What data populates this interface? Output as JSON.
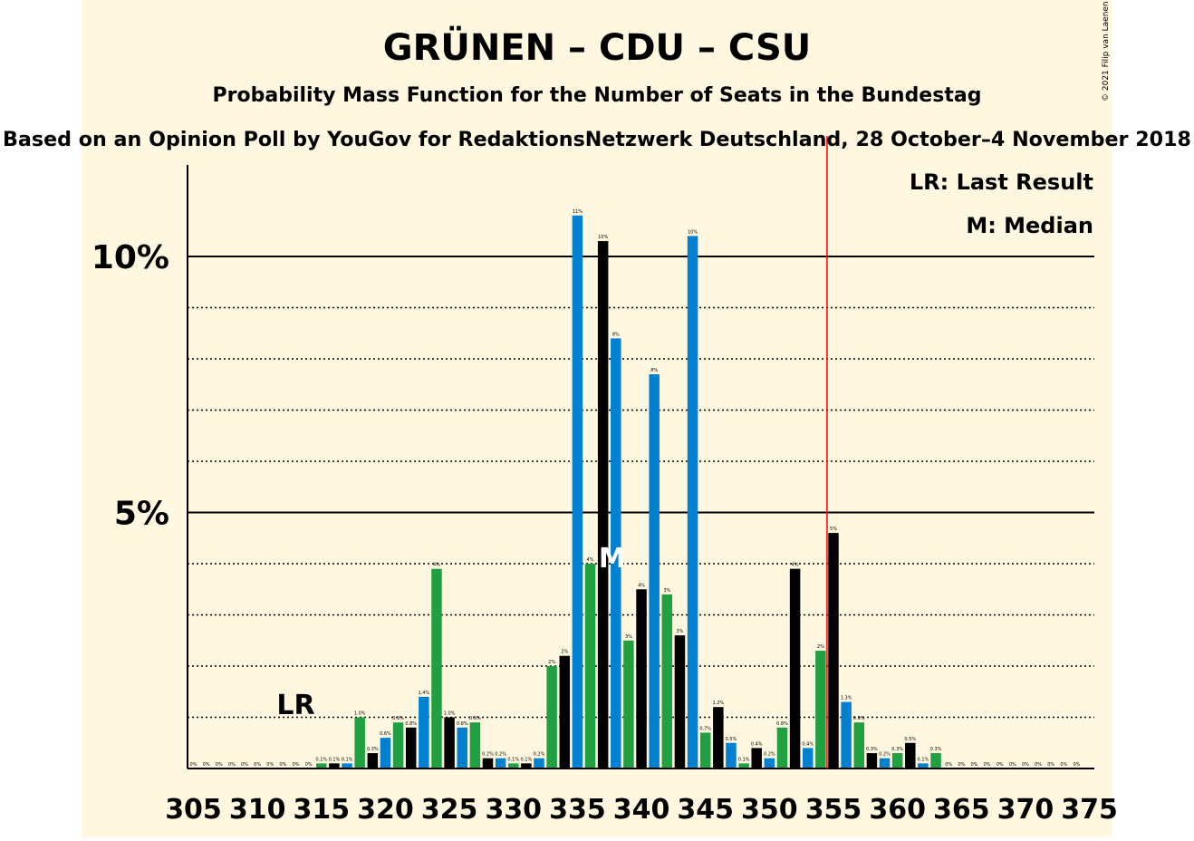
{
  "title": "GRÜNEN – CDU – CSU",
  "subtitle": "Probability Mass Function for the Number of Seats in the Bundestag",
  "source": "Based on an Opinion Poll by YouGov for RedaktionsNetzwerk Deutschland, 28 October–4 November 2018",
  "copyright": "© 2021 Filip van Laenen",
  "legend": {
    "lr": "LR: Last Result",
    "median": "M: Median"
  },
  "markers": {
    "lr_label": "LR",
    "median_label": "M"
  },
  "colors": {
    "background": "#fff7df",
    "blue": "#0080d0",
    "green": "#20a040",
    "black": "#000000",
    "majority_line": "#ff0000"
  },
  "chart_data": {
    "type": "bar",
    "x": [
      305,
      306,
      307,
      308,
      309,
      310,
      311,
      312,
      313,
      314,
      315,
      316,
      317,
      318,
      319,
      320,
      321,
      322,
      323,
      324,
      325,
      326,
      327,
      328,
      329,
      330,
      331,
      332,
      333,
      334,
      335,
      336,
      337,
      338,
      339,
      340,
      341,
      342,
      343,
      344,
      345,
      346,
      347,
      348,
      349,
      350,
      351,
      352,
      353,
      354,
      355,
      356,
      357,
      358,
      359,
      360,
      361,
      362,
      363,
      364,
      365,
      366,
      367,
      368,
      369,
      370,
      371,
      372,
      373,
      374
    ],
    "values": [
      0,
      0,
      0,
      0,
      0,
      0,
      0,
      0,
      0,
      0,
      0.1,
      0.1,
      0.1,
      1.0,
      0.3,
      0.6,
      0.9,
      0.8,
      1.4,
      3.9,
      1.0,
      0.8,
      0.9,
      0.2,
      0.2,
      0.1,
      0.1,
      0.2,
      2,
      2.2,
      10.8,
      4.0,
      10.3,
      8.4,
      2.5,
      3.5,
      7.7,
      3.4,
      2.6,
      10.4,
      0.7,
      1.2,
      0.5,
      0.1,
      0.4,
      0.2,
      0.8,
      3.9,
      0.4,
      2.3,
      4.6,
      1.3,
      0.9,
      0.3,
      0.2,
      0.3,
      0.5,
      0.1,
      0.3,
      0,
      0,
      0,
      0,
      0,
      0,
      0,
      0,
      0,
      0,
      0
    ],
    "labels": [
      "0%",
      "0%",
      "0%",
      "0%",
      "0%",
      "0%",
      "0%",
      "0%",
      "0%",
      "0%",
      "0.1%",
      "0.1%",
      "0.1%",
      "1.0%",
      "0.3%",
      "0.6%",
      "0.9%",
      "0.8%",
      "1.4%",
      "4%",
      "1.0%",
      "0.8%",
      "0.9%",
      "0.2%",
      "0.2%",
      "0.1%",
      "0.1%",
      "0.2%",
      "2%",
      "2%",
      "11%",
      "4%",
      "10%",
      "8%",
      "3%",
      "4%",
      "8%",
      "3%",
      "3%",
      "10%",
      "0.7%",
      "1.2%",
      "0.5%",
      "0.1%",
      "0.4%",
      "0.2%",
      "0.8%",
      "4%",
      "0.4%",
      "2%",
      "5%",
      "1.3%",
      "0.9%",
      "0.3%",
      "0.2%",
      "0.3%",
      "0.5%",
      "0.1%",
      "0.3%",
      "0%",
      "0%",
      "0%",
      "0%",
      "0%",
      "0%",
      "0%",
      "0%",
      "0%",
      "0%",
      "0%"
    ],
    "bar_colors": [
      "blue",
      "green",
      "black"
    ],
    "x_ticks": [
      305,
      310,
      315,
      320,
      325,
      330,
      335,
      340,
      345,
      350,
      355,
      360,
      365,
      370,
      375
    ],
    "x_tick_labels": [
      "305",
      "310",
      "315",
      "320",
      "325",
      "330",
      "335",
      "340",
      "345",
      "350",
      "355",
      "360",
      "365",
      "370",
      "375"
    ],
    "y_ticks_major": [
      5,
      10
    ],
    "y_tick_labels": [
      "5%",
      "10%"
    ],
    "y_ticks_minor": [
      1,
      2,
      3,
      4,
      6,
      7,
      8,
      9
    ],
    "ylim": [
      0,
      11.8
    ],
    "xlim": [
      304.5,
      375
    ],
    "last_result": 313,
    "median": 338,
    "majority": 354.5
  }
}
